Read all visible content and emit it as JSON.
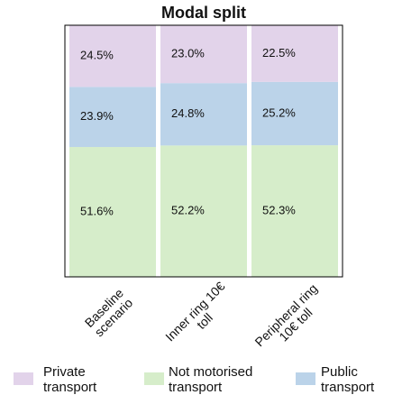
{
  "chart_data": {
    "type": "stacked-bar",
    "title": "Modal split",
    "categories": [
      "Baseline scenario",
      "Inner ring 10€ toll",
      "Peripheral ring 10€ toll"
    ],
    "series": [
      {
        "name": "Not motorised transport",
        "color": "#d6edca",
        "values": [
          51.6,
          52.2,
          52.3
        ],
        "value_labels": [
          "51.6%",
          "52.2%",
          "52.3%"
        ]
      },
      {
        "name": "Public transport",
        "color": "#bbd3e9",
        "values": [
          23.9,
          24.8,
          25.2
        ],
        "value_labels": [
          "23.9%",
          "24.8%",
          "25.2%"
        ]
      },
      {
        "name": "Private transport",
        "color": "#e2d3ea",
        "values": [
          24.5,
          23.0,
          22.5
        ],
        "value_labels": [
          "24.5%",
          "23.0%",
          "22.5%"
        ]
      }
    ],
    "legend_order": [
      2,
      0,
      1
    ],
    "ylim": [
      0,
      100
    ]
  }
}
